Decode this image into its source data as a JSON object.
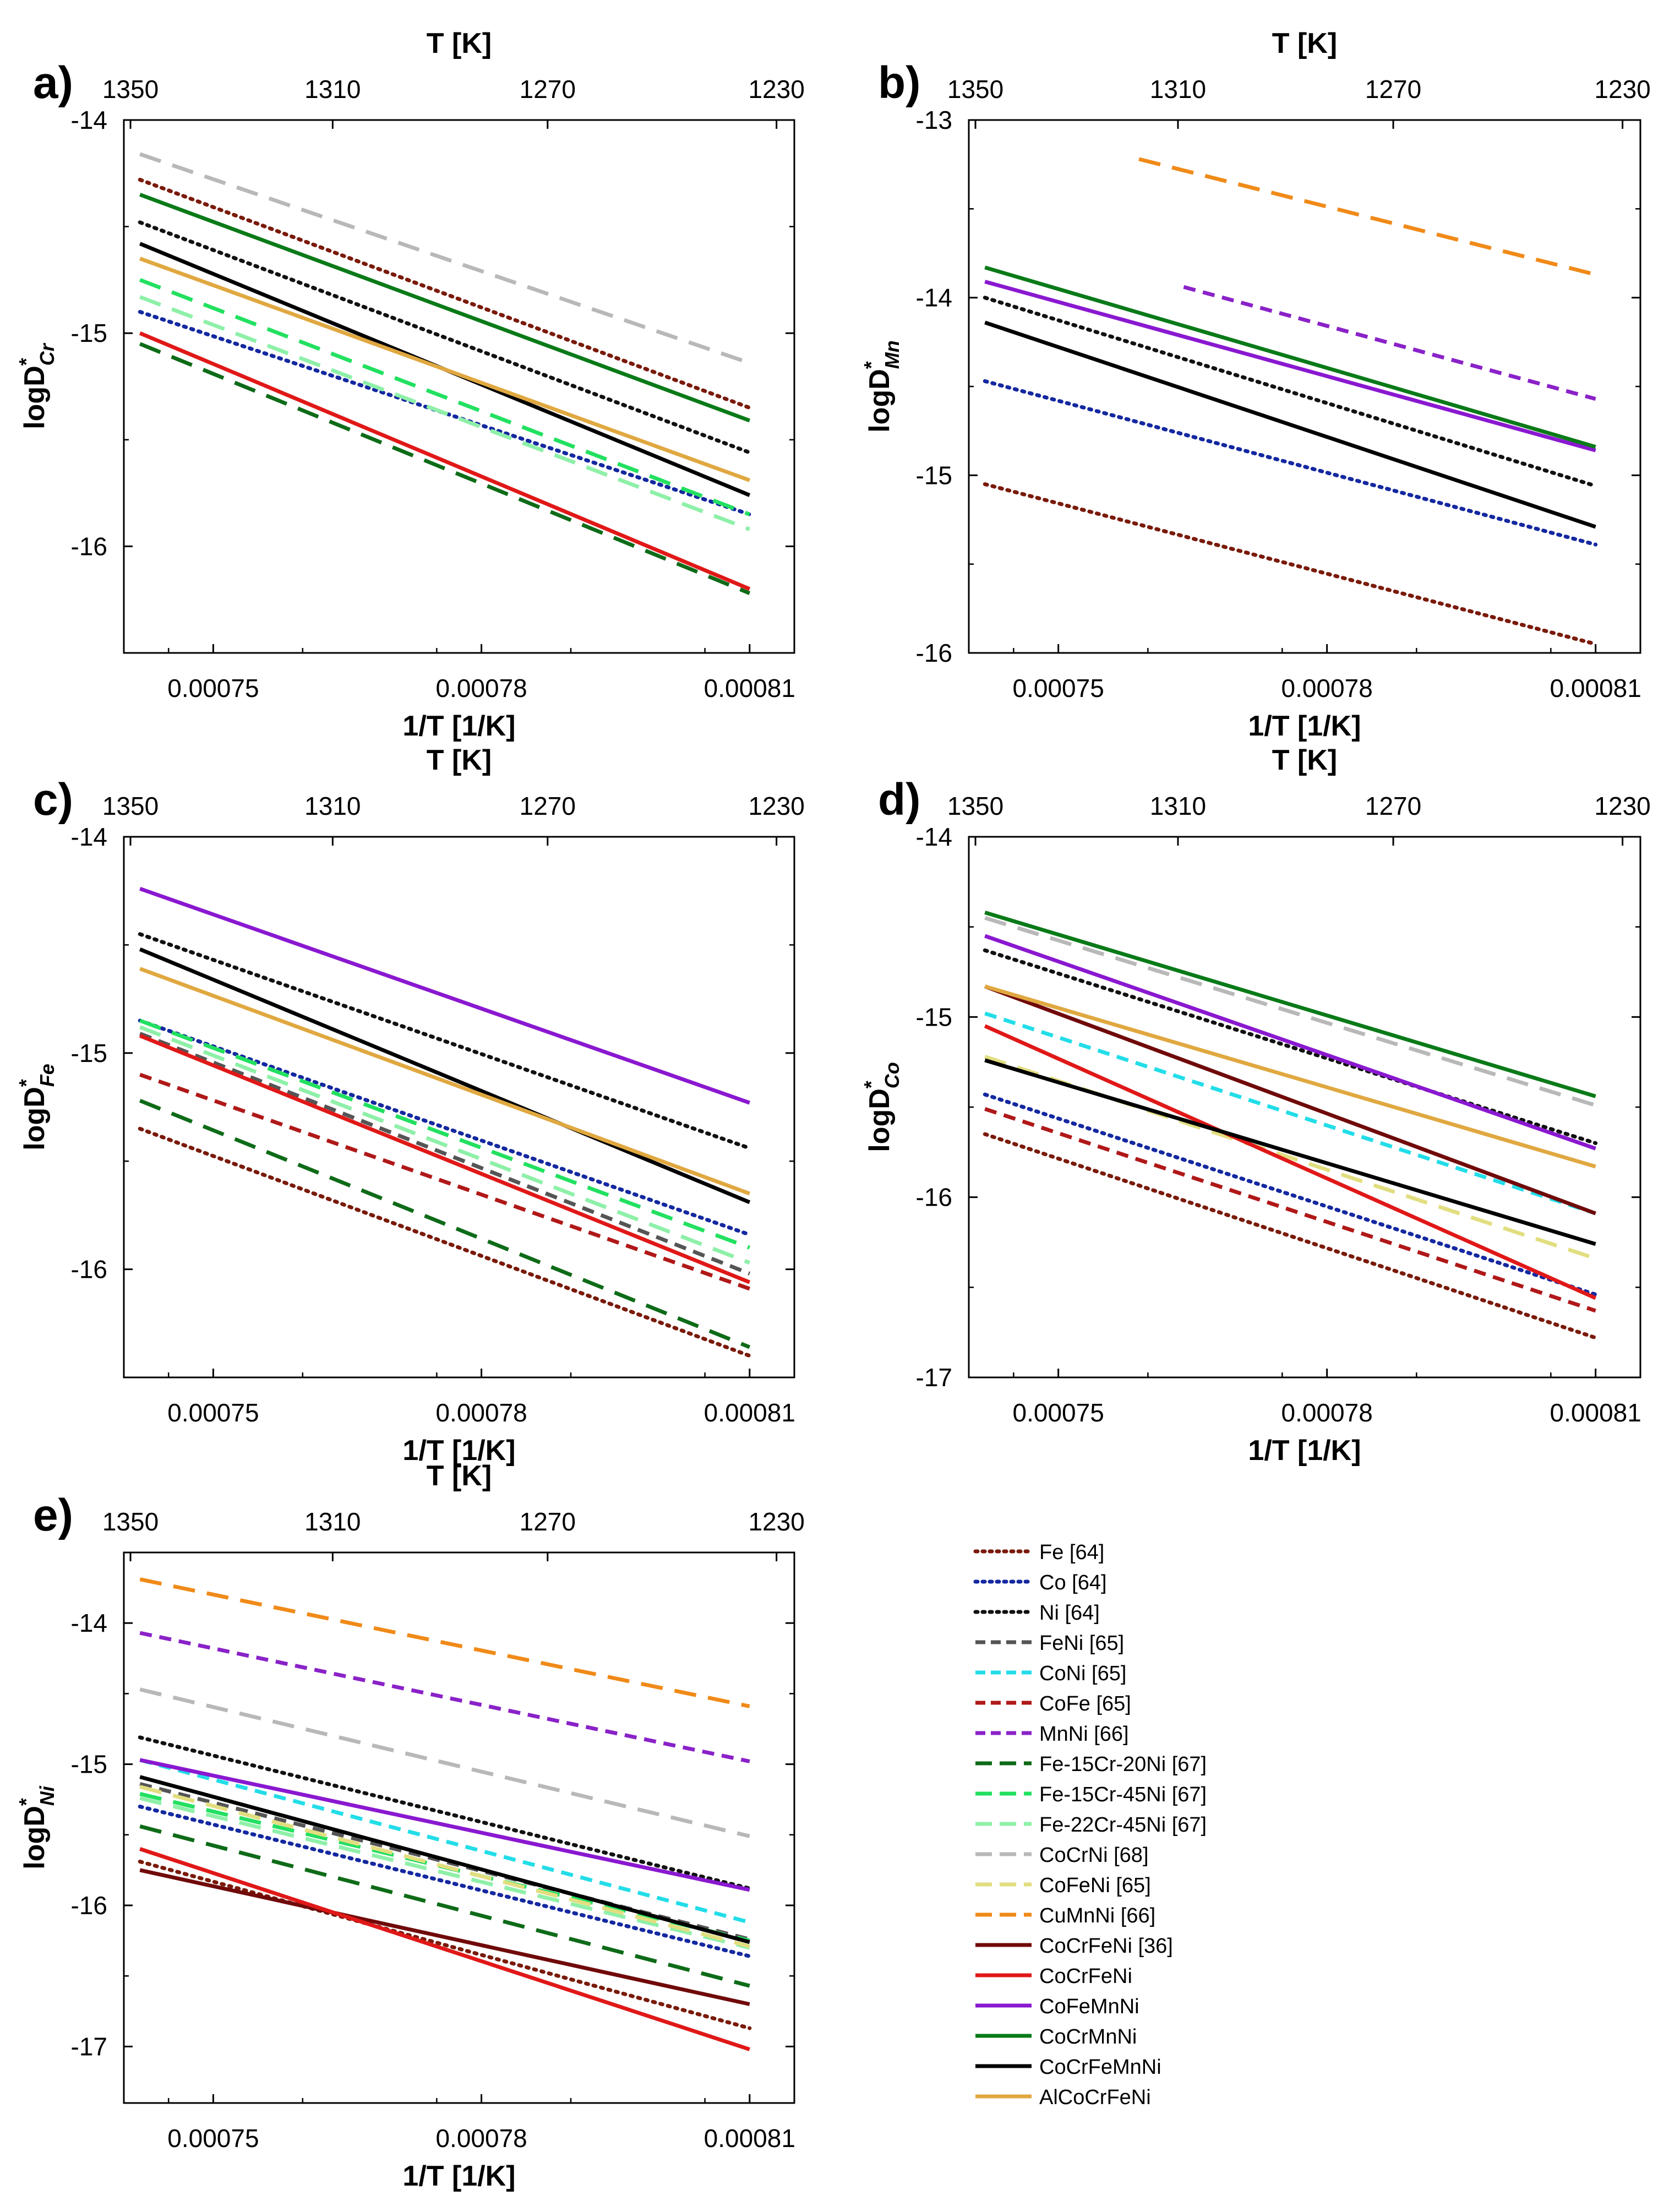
{
  "figure": {
    "legend": [
      {
        "label": "Fe [64]",
        "color": "#7a1a0a",
        "dash": "dot"
      },
      {
        "label": "Co [64]",
        "color": "#1428a0",
        "dash": "dot"
      },
      {
        "label": "Ni [64]",
        "color": "#111111",
        "dash": "dot"
      },
      {
        "label": "FeNi [65]",
        "color": "#555555",
        "dash": "short"
      },
      {
        "label": "CoNi [65]",
        "color": "#22dde8",
        "dash": "short"
      },
      {
        "label": "CoFe [65]",
        "color": "#b01818",
        "dash": "short"
      },
      {
        "label": "MnNi [66]",
        "color": "#8a22c8",
        "dash": "short"
      },
      {
        "label": "Fe-15Cr-20Ni [67]",
        "color": "#0e6b18",
        "dash": "long"
      },
      {
        "label": "Fe-15Cr-45Ni [67]",
        "color": "#22e060",
        "dash": "long"
      },
      {
        "label": "Fe-22Cr-45Ni [67]",
        "color": "#8ef0a8",
        "dash": "long"
      },
      {
        "label": "CoCrNi [68]",
        "color": "#b8b8b8",
        "dash": "long"
      },
      {
        "label": "CoFeNi [65]",
        "color": "#e2de80",
        "dash": "long"
      },
      {
        "label": "CuMnNi [66]",
        "color": "#f08a18",
        "dash": "long"
      },
      {
        "label": "CoCrFeNi [36]",
        "color": "#700a0a",
        "dash": "solid"
      },
      {
        "label": "CoCrFeNi",
        "color": "#e01818",
        "dash": "solid"
      },
      {
        "label": "CoFeMnNi",
        "color": "#8a18d0",
        "dash": "solid"
      },
      {
        "label": "CoCrMnNi",
        "color": "#0a7a18",
        "dash": "solid"
      },
      {
        "label": "CoCrFeMnNi",
        "color": "#000000",
        "dash": "solid"
      },
      {
        "label": "AlCoCrFeNi",
        "color": "#e0a840",
        "dash": "solid"
      }
    ]
  },
  "chart_data": [
    {
      "type": "line",
      "panel_label": "a)",
      "title": "",
      "xlabel": "1/T [1/K]",
      "top_xlabel": "T [K]",
      "ylabel_base": "logD",
      "ylabel_sup": "*",
      "ylabel_sub": "Cr",
      "xlim": [
        0.00074,
        0.000815
      ],
      "xticks": [
        0.00075,
        0.00078,
        0.00081
      ],
      "xtick_labels": [
        "0.00075",
        "0.00078",
        "0.00081"
      ],
      "top_ticks": [
        1350,
        1310,
        1270,
        1230
      ],
      "top_tick_labels": [
        "1350",
        "1310",
        "1270",
        "1230"
      ],
      "ylim": [
        -16.5,
        -14
      ],
      "yticks": [
        -14,
        -15,
        -16
      ],
      "ytick_labels": [
        "-14",
        "-15",
        "-16"
      ],
      "x_range": [
        0.0007418,
        0.00081
      ],
      "series": [
        {
          "name": "Fe [64]",
          "y": [
            -14.28,
            -15.35
          ]
        },
        {
          "name": "Co [64]",
          "y": [
            -14.9,
            -15.85
          ]
        },
        {
          "name": "Ni [64]",
          "y": [
            -14.48,
            -15.56
          ]
        },
        {
          "name": "Fe-15Cr-20Ni [67]",
          "y": [
            -15.05,
            -16.22
          ]
        },
        {
          "name": "Fe-15Cr-45Ni [67]",
          "y": [
            -14.75,
            -15.85
          ]
        },
        {
          "name": "Fe-22Cr-45Ni [67]",
          "y": [
            -14.83,
            -15.92
          ]
        },
        {
          "name": "CoCrNi [68]",
          "y": [
            -14.16,
            -15.14
          ]
        },
        {
          "name": "CoCrFeNi",
          "y": [
            -15.0,
            -16.2
          ]
        },
        {
          "name": "CoCrMnNi",
          "y": [
            -14.35,
            -15.41
          ]
        },
        {
          "name": "CoCrFeMnNi",
          "y": [
            -14.58,
            -15.76
          ]
        },
        {
          "name": "AlCoCrFeNi",
          "y": [
            -14.65,
            -15.69
          ]
        }
      ]
    },
    {
      "type": "line",
      "panel_label": "b)",
      "title": "",
      "xlabel": "1/T [1/K]",
      "top_xlabel": "T [K]",
      "ylabel_base": "logD",
      "ylabel_sup": "*",
      "ylabel_sub": "Mn",
      "xlim": [
        0.00074,
        0.000815
      ],
      "xticks": [
        0.00075,
        0.00078,
        0.00081
      ],
      "xtick_labels": [
        "0.00075",
        "0.00078",
        "0.00081"
      ],
      "top_ticks": [
        1350,
        1310,
        1270,
        1230
      ],
      "top_tick_labels": [
        "1350",
        "1310",
        "1270",
        "1230"
      ],
      "ylim": [
        -16,
        -13
      ],
      "yticks": [
        -13,
        -14,
        -15,
        -16
      ],
      "ytick_labels": [
        "-13",
        "-14",
        "-15",
        "-16"
      ],
      "x_range": [
        0.0007418,
        0.00081
      ],
      "series": [
        {
          "name": "Fe [64]",
          "y": [
            -15.05,
            -15.95
          ]
        },
        {
          "name": "Co [64]",
          "y": [
            -14.47,
            -15.39
          ]
        },
        {
          "name": "Ni [64]",
          "y": [
            -14.0,
            -15.06
          ]
        },
        {
          "name": "MnNi [66]",
          "x": [
            0.000764,
            0.00081
          ],
          "y": [
            -13.94,
            -14.57
          ]
        },
        {
          "name": "CuMnNi [66]",
          "x": [
            0.000759,
            0.00081
          ],
          "y": [
            -13.22,
            -13.87
          ]
        },
        {
          "name": "CoFeMnNi",
          "y": [
            -13.91,
            -14.86
          ]
        },
        {
          "name": "CoCrMnNi",
          "y": [
            -13.83,
            -14.84
          ]
        },
        {
          "name": "CoCrFeMnNi",
          "y": [
            -14.14,
            -15.29
          ]
        }
      ]
    },
    {
      "type": "line",
      "panel_label": "c)",
      "title": "",
      "xlabel": "1/T [1/K]",
      "top_xlabel": "T [K]",
      "ylabel_base": "logD",
      "ylabel_sup": "*",
      "ylabel_sub": "Fe",
      "xlim": [
        0.00074,
        0.000815
      ],
      "xticks": [
        0.00075,
        0.00078,
        0.00081
      ],
      "xtick_labels": [
        "0.00075",
        "0.00078",
        "0.00081"
      ],
      "top_ticks": [
        1350,
        1310,
        1270,
        1230
      ],
      "top_tick_labels": [
        "1350",
        "1310",
        "1270",
        "1230"
      ],
      "ylim": [
        -16.5,
        -14
      ],
      "yticks": [
        -14,
        -15,
        -16
      ],
      "ytick_labels": [
        "-14",
        "-15",
        "-16"
      ],
      "x_range": [
        0.0007418,
        0.00081
      ],
      "series": [
        {
          "name": "Fe [64]",
          "y": [
            -15.35,
            -16.4
          ]
        },
        {
          "name": "Co [64]",
          "y": [
            -14.85,
            -15.84
          ]
        },
        {
          "name": "Ni [64]",
          "y": [
            -14.45,
            -15.44
          ]
        },
        {
          "name": "FeNi [65]",
          "y": [
            -14.91,
            -16.02
          ]
        },
        {
          "name": "CoFe [65]",
          "y": [
            -15.1,
            -16.09
          ]
        },
        {
          "name": "Fe-15Cr-20Ni [67]",
          "y": [
            -15.22,
            -16.36
          ]
        },
        {
          "name": "Fe-15Cr-45Ni [67]",
          "y": [
            -14.85,
            -15.9
          ]
        },
        {
          "name": "Fe-22Cr-45Ni [67]",
          "y": [
            -14.88,
            -15.97
          ]
        },
        {
          "name": "CoCrFeNi",
          "y": [
            -14.92,
            -16.06
          ]
        },
        {
          "name": "CoFeMnNi",
          "y": [
            -14.24,
            -15.23
          ]
        },
        {
          "name": "CoCrFeMnNi",
          "y": [
            -14.52,
            -15.69
          ]
        },
        {
          "name": "AlCoCrFeNi",
          "y": [
            -14.61,
            -15.65
          ]
        }
      ]
    },
    {
      "type": "line",
      "panel_label": "d)",
      "title": "",
      "xlabel": "1/T [1/K]",
      "top_xlabel": "T [K]",
      "ylabel_base": "logD",
      "ylabel_sup": "*",
      "ylabel_sub": "Co",
      "xlim": [
        0.00074,
        0.000815
      ],
      "xticks": [
        0.00075,
        0.00078,
        0.00081
      ],
      "xtick_labels": [
        "0.00075",
        "0.00078",
        "0.00081"
      ],
      "top_ticks": [
        1350,
        1310,
        1270,
        1230
      ],
      "top_tick_labels": [
        "1350",
        "1310",
        "1270",
        "1230"
      ],
      "ylim": [
        -17,
        -14
      ],
      "yticks": [
        -14,
        -15,
        -16,
        -17
      ],
      "ytick_labels": [
        "-14",
        "-15",
        "-16",
        "-17"
      ],
      "x_range": [
        0.0007418,
        0.00081
      ],
      "series": [
        {
          "name": "Fe [64]",
          "y": [
            -15.65,
            -16.78
          ]
        },
        {
          "name": "Co [64]",
          "y": [
            -15.43,
            -16.54
          ]
        },
        {
          "name": "Ni [64]",
          "y": [
            -14.63,
            -15.7
          ]
        },
        {
          "name": "CoNi [65]",
          "y": [
            -14.98,
            -16.09
          ]
        },
        {
          "name": "CoFe [65]",
          "y": [
            -15.51,
            -16.63
          ]
        },
        {
          "name": "CoCrNi [68]",
          "y": [
            -14.45,
            -15.49
          ]
        },
        {
          "name": "CoFeNi [65]",
          "y": [
            -15.22,
            -16.34
          ]
        },
        {
          "name": "CoCrFeNi [36]",
          "y": [
            -14.83,
            -16.09
          ]
        },
        {
          "name": "CoCrFeNi",
          "y": [
            -15.05,
            -16.56
          ]
        },
        {
          "name": "CoFeMnNi",
          "y": [
            -14.55,
            -15.73
          ]
        },
        {
          "name": "CoCrMnNi",
          "y": [
            -14.42,
            -15.44
          ]
        },
        {
          "name": "CoCrFeMnNi",
          "y": [
            -15.24,
            -16.26
          ]
        },
        {
          "name": "AlCoCrFeNi",
          "y": [
            -14.83,
            -15.83
          ]
        }
      ]
    },
    {
      "type": "line",
      "panel_label": "e)",
      "title": "",
      "xlabel": "1/T [1/K]",
      "top_xlabel": "T [K]",
      "ylabel_base": "logD",
      "ylabel_sup": "*",
      "ylabel_sub": "Ni",
      "xlim": [
        0.00074,
        0.000815
      ],
      "xticks": [
        0.00075,
        0.00078,
        0.00081
      ],
      "xtick_labels": [
        "0.00075",
        "0.00078",
        "0.00081"
      ],
      "top_ticks": [
        1350,
        1310,
        1270,
        1230
      ],
      "top_tick_labels": [
        "1350",
        "1310",
        "1270",
        "1230"
      ],
      "ylim": [
        -17.4,
        -13.5
      ],
      "yticks": [
        -14,
        -15,
        -16,
        -17
      ],
      "ytick_labels": [
        "-14",
        "-15",
        "-16",
        "-17"
      ],
      "x_range": [
        0.0007418,
        0.00081
      ],
      "series": [
        {
          "name": "Fe [64]",
          "y": [
            -15.69,
            -16.87
          ]
        },
        {
          "name": "Co [64]",
          "y": [
            -15.3,
            -16.36
          ]
        },
        {
          "name": "Ni [64]",
          "y": [
            -14.81,
            -15.88
          ]
        },
        {
          "name": "FeNi [65]",
          "y": [
            -15.14,
            -16.24
          ]
        },
        {
          "name": "CoNi [65]",
          "y": [
            -14.97,
            -16.12
          ]
        },
        {
          "name": "MnNi [66]",
          "y": [
            -14.07,
            -14.98
          ]
        },
        {
          "name": "Fe-15Cr-20Ni [67]",
          "y": [
            -15.44,
            -16.57
          ]
        },
        {
          "name": "Fe-15Cr-45Ni [67]",
          "y": [
            -15.21,
            -16.25
          ]
        },
        {
          "name": "Fe-22Cr-45Ni [67]",
          "y": [
            -15.24,
            -16.3
          ]
        },
        {
          "name": "CoCrNi [68]",
          "y": [
            -14.47,
            -15.51
          ]
        },
        {
          "name": "CoFeNi [65]",
          "y": [
            -15.16,
            -16.29
          ]
        },
        {
          "name": "CuMnNi [66]",
          "y": [
            -13.69,
            -14.59
          ]
        },
        {
          "name": "CoCrFeNi [36]",
          "y": [
            -15.75,
            -16.7
          ]
        },
        {
          "name": "CoCrFeNi",
          "y": [
            -15.6,
            -17.02
          ]
        },
        {
          "name": "CoFeMnNi",
          "y": [
            -14.97,
            -15.89
          ]
        },
        {
          "name": "CoCrFeMnNi",
          "y": [
            -15.09,
            -16.26
          ]
        }
      ]
    }
  ]
}
